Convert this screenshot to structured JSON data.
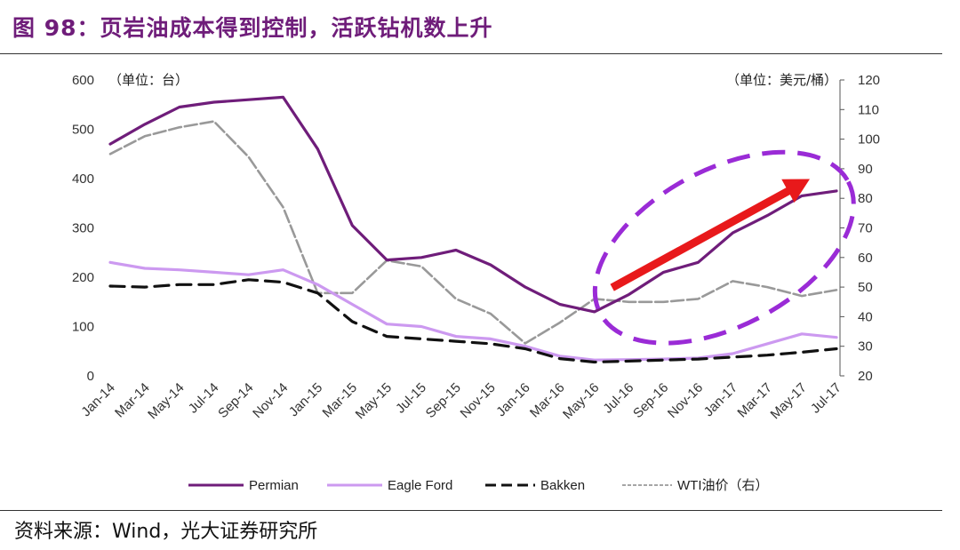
{
  "header": {
    "title": "图 98：页岩油成本得到控制，活跃钻机数上升"
  },
  "footer": {
    "source": "资料来源：Wind，光大证券研究所"
  },
  "chart_data": {
    "type": "line",
    "left_unit": "（单位：台）",
    "right_unit": "（单位：美元/桶）",
    "x_labels": [
      "Jan-14",
      "Mar-14",
      "May-14",
      "Jul-14",
      "Sep-14",
      "Nov-14",
      "Jan-15",
      "Mar-15",
      "May-15",
      "Jul-15",
      "Sep-15",
      "Nov-15",
      "Jan-16",
      "Mar-16",
      "May-16",
      "Jul-16",
      "Sep-16",
      "Nov-16",
      "Jan-17",
      "Mar-17",
      "May-17",
      "Jul-17"
    ],
    "y_left_ticks": [
      "0",
      "100",
      "200",
      "300",
      "400",
      "500",
      "600"
    ],
    "y_left_range": [
      0,
      600
    ],
    "y_right_ticks": [
      "20",
      "30",
      "40",
      "50",
      "60",
      "70",
      "80",
      "90",
      "100",
      "110",
      "120"
    ],
    "y_right_range": [
      20,
      120
    ],
    "legend_position": "bottom",
    "series": [
      {
        "name": "Permian",
        "axis": "left",
        "color": "#6f1d7a",
        "style": "solid",
        "values": [
          470,
          510,
          545,
          555,
          560,
          565,
          460,
          305,
          235,
          240,
          255,
          225,
          180,
          145,
          130,
          165,
          210,
          230,
          290,
          325,
          365,
          375
        ]
      },
      {
        "name": "Eagle Ford",
        "axis": "left",
        "color": "#cc99f0",
        "style": "solid",
        "values": [
          230,
          218,
          215,
          210,
          205,
          215,
          185,
          145,
          105,
          100,
          80,
          75,
          60,
          40,
          32,
          33,
          34,
          36,
          45,
          65,
          85,
          78
        ]
      },
      {
        "name": "Bakken",
        "axis": "left",
        "color": "#111111",
        "style": "dash",
        "values": [
          182,
          180,
          185,
          185,
          195,
          190,
          168,
          110,
          80,
          75,
          70,
          65,
          55,
          35,
          28,
          30,
          32,
          34,
          38,
          42,
          48,
          55
        ]
      },
      {
        "name": "WTI油价（右）",
        "axis": "right",
        "color": "#999999",
        "style": "dash-light",
        "values": [
          95,
          101,
          104,
          106,
          94,
          77,
          48,
          48,
          59,
          57,
          46,
          41,
          31,
          38,
          46,
          45,
          45,
          46,
          52,
          50,
          47,
          49
        ]
      }
    ],
    "annotations": [
      {
        "type": "arrow",
        "color": "#e8191b",
        "from": [
          "May-16",
          170
        ],
        "to": [
          "Jul-17",
          410
        ]
      },
      {
        "type": "dashed-ellipse",
        "color": "#9a2bd6",
        "around": "May-16 to Jul-17 rising rigs"
      }
    ]
  }
}
